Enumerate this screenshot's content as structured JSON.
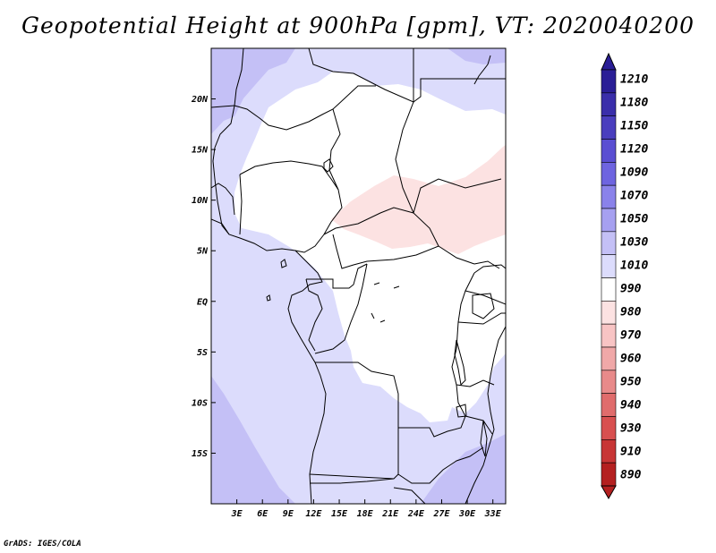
{
  "title": "Geopotential Height at 900hPa [gpm], VT: 2020040200",
  "credit": "GrADS: IGES/COLA",
  "map": {
    "lon_range": [
      0,
      34.5
    ],
    "lat_range": [
      -20,
      25
    ],
    "lat_ticks": [
      {
        "value": 20,
        "label": "20N"
      },
      {
        "value": 15,
        "label": "15N"
      },
      {
        "value": 10,
        "label": "10N"
      },
      {
        "value": 5,
        "label": "5N"
      },
      {
        "value": 0,
        "label": "EQ"
      },
      {
        "value": -5,
        "label": "5S"
      },
      {
        "value": -10,
        "label": "10S"
      },
      {
        "value": -15,
        "label": "15S"
      }
    ],
    "lon_ticks": [
      {
        "value": 3,
        "label": "3E"
      },
      {
        "value": 6,
        "label": "6E"
      },
      {
        "value": 9,
        "label": "9E"
      },
      {
        "value": 12,
        "label": "12E"
      },
      {
        "value": 15,
        "label": "15E"
      },
      {
        "value": 18,
        "label": "18E"
      },
      {
        "value": 21,
        "label": "21E"
      },
      {
        "value": 24,
        "label": "24E"
      },
      {
        "value": 27,
        "label": "27E"
      },
      {
        "value": 30,
        "label": "30E"
      },
      {
        "value": 33,
        "label": "33E"
      }
    ]
  },
  "colorbar": {
    "levels": [
      "1210",
      "1180",
      "1150",
      "1120",
      "1090",
      "1070",
      "1050",
      "1030",
      "1010",
      "990",
      "980",
      "970",
      "960",
      "950",
      "940",
      "930",
      "910",
      "890"
    ],
    "colors": [
      "#2a1e96",
      "#3a2eaa",
      "#4a3ebe",
      "#5a4ed2",
      "#6e64e0",
      "#8a82ea",
      "#a6a0f0",
      "#c4c0f6",
      "#dcdcfc",
      "#ffffff",
      "#fce2e2",
      "#f8c4c4",
      "#f0a8a8",
      "#e88a8a",
      "#e06c6c",
      "#d85050",
      "#c83636",
      "#b42020"
    ]
  }
}
